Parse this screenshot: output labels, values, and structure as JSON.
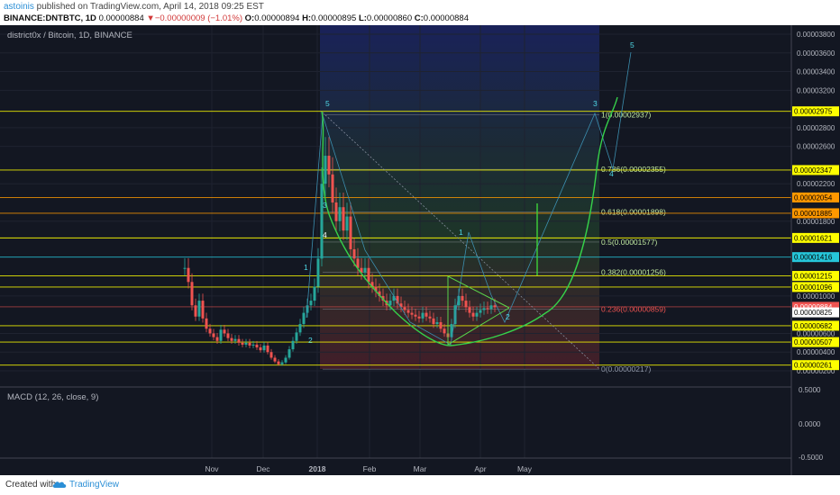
{
  "header": {
    "author": "astoinis",
    "published_text": " published on TradingView.com, April 14, 2018 09:25 EST",
    "symbol": "BINANCE:DNTBTC, 1D",
    "last": "0.00000884",
    "change_arrow": "▼",
    "change": "−0.00000009 (−1.01%)",
    "open_label": "O:",
    "open": "0.00000894",
    "high_label": "H:",
    "high": "0.00000895",
    "low_label": "L:",
    "low": "0.00000860",
    "close_label": "C:",
    "close": "0.00000884"
  },
  "chart": {
    "title": "district0x / Bitcoin, 1D, BINANCE",
    "macd_label": "MACD (12, 26, close, 9)"
  },
  "footer": {
    "created_with": "Created with",
    "brand": "TradingView",
    "logo_icon": "tradingview-cloud-icon"
  },
  "chart_data": {
    "type": "candlestick",
    "y_axis": {
      "ticks": [
        "0.00003800",
        "0.00003600",
        "0.00003400",
        "0.00003200",
        "0.00002800",
        "0.00002600",
        "0.00002200",
        "0.00001800",
        "0.00001000",
        "0.00000600",
        "0.00000400",
        "0.00000200"
      ],
      "range": [
        1.5e-06,
        3.9e-05
      ]
    },
    "macd_axis": {
      "ticks": [
        "0.5000",
        "0.0000",
        "-0.5000"
      ]
    },
    "x_axis": {
      "ticks": [
        "Nov",
        "Dec",
        "2018",
        "Feb",
        "Mar",
        "Apr",
        "May"
      ]
    },
    "price_labels": [
      {
        "value": "0.00002975",
        "color": "#ffff00"
      },
      {
        "value": "0.00002347",
        "color": "#ffff00"
      },
      {
        "value": "0.00002054",
        "color": "#ff9800"
      },
      {
        "value": "0.00001885",
        "color": "#ff9800"
      },
      {
        "value": "0.00001621",
        "color": "#ffff00"
      },
      {
        "value": "0.00001416",
        "color": "#26c6da"
      },
      {
        "value": "0.00001215",
        "color": "#ffff00"
      },
      {
        "value": "0.00001096",
        "color": "#ffff00"
      },
      {
        "value": "0.00000884",
        "color": "#ef5350"
      },
      {
        "value": "0.00000825",
        "color": "#ffffff"
      },
      {
        "value": "0.00000682",
        "color": "#ffff00"
      },
      {
        "value": "0.00000507",
        "color": "#ffff00"
      },
      {
        "value": "0.00000261",
        "color": "#ffff00"
      }
    ],
    "fib_levels": [
      {
        "label": "1(0.00002937)",
        "value": 2.937e-05
      },
      {
        "label": "0.786(0.00002355)",
        "value": 2.355e-05
      },
      {
        "label": "0.618(0.00001898)",
        "value": 1.898e-05
      },
      {
        "label": "0.5(0.00001577)",
        "value": 1.577e-05
      },
      {
        "label": "0.382(0.00001256)",
        "value": 1.256e-05
      },
      {
        "label": "0.236(0.00000859)",
        "value": 8.59e-06
      },
      {
        "label": "0(0.00000217)",
        "value": 2.17e-06
      }
    ],
    "wave_labels": [
      "1",
      "2",
      "3",
      "4",
      "5",
      "1",
      "2",
      "3",
      "4",
      "5"
    ]
  }
}
